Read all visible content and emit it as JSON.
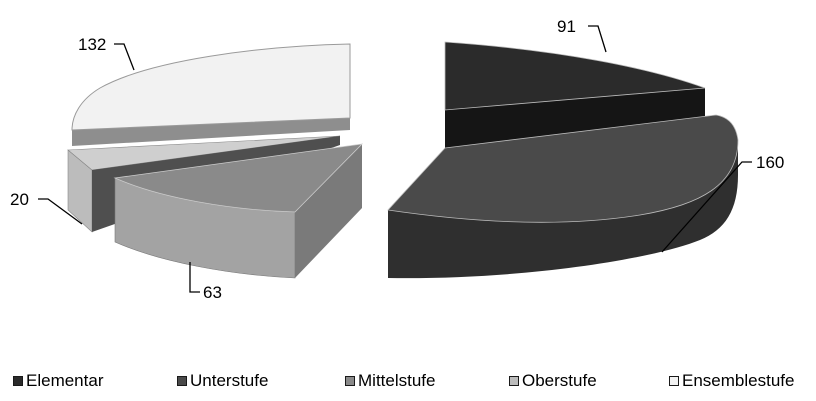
{
  "chart_data": {
    "type": "pie",
    "title": "",
    "categories": [
      "Elementar",
      "Unterstufe",
      "Mittelstufe",
      "Oberstufe",
      "Ensemblestufe"
    ],
    "values": [
      91,
      160,
      63,
      20,
      132
    ],
    "labels": [
      "91",
      "160",
      "63",
      "20",
      "132"
    ],
    "colors": [
      "#2b2b2b",
      "#4a4a4a",
      "#8a8a8a",
      "#bcbcbc",
      "#f2f2f2"
    ],
    "exploded": true,
    "three_d": true,
    "legend_position": "bottom"
  }
}
